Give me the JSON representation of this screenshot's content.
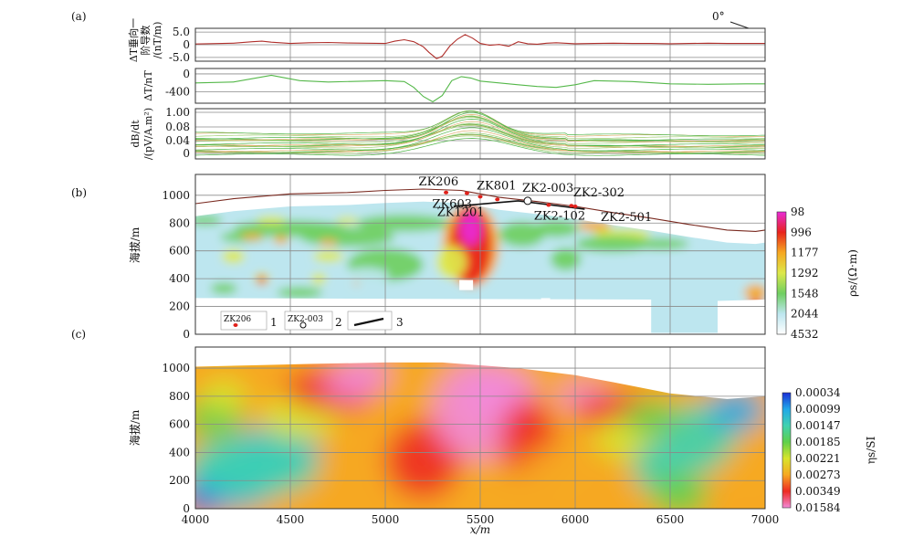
{
  "panel_labels": [
    "(a)",
    "(b)",
    "(c)"
  ],
  "direction_label": "0°",
  "chart_data": [
    {
      "id": "a1",
      "type": "line",
      "ylabel": [
        "ΔT垂向一",
        "阶导数",
        "/(nT/m)"
      ],
      "yticks": [
        "5.0",
        "0",
        "-5.0"
      ],
      "ytick_values": [
        5,
        0,
        -5
      ],
      "ylim": [
        -6.5,
        6.5
      ],
      "xlim": [
        4000,
        7000
      ],
      "color": "#b0302c",
      "x": [
        4000,
        4200,
        4300,
        4350,
        4400,
        4500,
        4600,
        4700,
        4800,
        4900,
        5000,
        5050,
        5100,
        5150,
        5200,
        5230,
        5270,
        5300,
        5340,
        5380,
        5420,
        5460,
        5500,
        5550,
        5600,
        5650,
        5700,
        5750,
        5800,
        5850,
        5900,
        6000,
        6100,
        6200,
        6300,
        6400,
        6500,
        6600,
        6700,
        6800,
        6900,
        7000
      ],
      "values": [
        0.3,
        0.6,
        1.2,
        1.4,
        1.0,
        0.5,
        0.8,
        0.9,
        0.7,
        0.6,
        0.5,
        1.4,
        2.0,
        1.2,
        -0.8,
        -3.0,
        -5.5,
        -4.5,
        -0.5,
        2.2,
        4.0,
        2.6,
        0.5,
        -0.2,
        0.1,
        -0.6,
        1.2,
        0.4,
        0.2,
        0.6,
        0.8,
        0.4,
        0.5,
        0.6,
        0.5,
        0.5,
        0.4,
        0.5,
        0.6,
        0.5,
        0.5,
        0.5
      ]
    },
    {
      "id": "a2",
      "type": "line",
      "ylabel": [
        "ΔT/nT"
      ],
      "yticks": [
        "0",
        "-400"
      ],
      "ytick_values": [
        0,
        -400
      ],
      "ylim": [
        -650,
        120
      ],
      "xlim": [
        4000,
        7000
      ],
      "color": "#55b84a",
      "x": [
        4000,
        4200,
        4400,
        4550,
        4700,
        4900,
        5000,
        5100,
        5150,
        5200,
        5250,
        5300,
        5350,
        5400,
        5450,
        5500,
        5600,
        5700,
        5800,
        5900,
        6000,
        6100,
        6300,
        6500,
        6700,
        6900,
        7000
      ],
      "values": [
        -200,
        -180,
        -30,
        -150,
        -180,
        -160,
        -150,
        -170,
        -300,
        -500,
        -620,
        -480,
        -150,
        -60,
        -90,
        -160,
        -200,
        -240,
        -280,
        -300,
        -240,
        -150,
        -170,
        -220,
        -230,
        -220,
        -220
      ]
    },
    {
      "id": "a3",
      "type": "line",
      "ylabel": [
        "dB/dt",
        "/(pV/A.m²)"
      ],
      "yticks": [
        "1.00",
        "0.08",
        "0.04",
        "0"
      ],
      "ylim": [
        0,
        1
      ],
      "xlim": [
        4000,
        7000
      ],
      "color": "#5fbf52",
      "peak_x": 5450,
      "baselines": [
        0.05,
        0.1,
        0.15,
        0.22,
        0.3,
        0.38,
        0.46
      ],
      "peak": 1.0
    },
    {
      "id": "b",
      "type": "heatmap",
      "ylabel": "海拔/m",
      "yticks": [
        "1000",
        "800",
        "600",
        "400",
        "200",
        "0"
      ],
      "ytick_values": [
        1000,
        800,
        600,
        400,
        200,
        0
      ],
      "ylim": [
        0,
        1150
      ],
      "xlim": [
        4000,
        7000
      ],
      "colorbar_label": "ρs/(Ω·m)",
      "colorbar_ticks": [
        "98",
        "996",
        "1177",
        "1292",
        "1548",
        "2044",
        "4532"
      ],
      "colorbar_colors": [
        "#e82bd8",
        "#e8231c",
        "#f6a821",
        "#dde84a",
        "#6fcf61",
        "#bde6ef",
        "#ffffff"
      ],
      "terrain_x": [
        4000,
        4200,
        4500,
        4800,
        5000,
        5200,
        5400,
        5500,
        5600,
        5800,
        6000,
        6200,
        6400,
        6600,
        6800,
        6950,
        7000
      ],
      "terrain_y": [
        940,
        975,
        1010,
        1020,
        1035,
        1045,
        1035,
        1010,
        985,
        955,
        920,
        875,
        835,
        790,
        750,
        740,
        750
      ],
      "boreholes": [
        {
          "name": "ZK206",
          "x": 5320,
          "y": 1020,
          "type": "drill"
        },
        {
          "name": "ZK603",
          "x": 5430,
          "y": 1015,
          "type": "drill"
        },
        {
          "name": "ZK801",
          "x": 5500,
          "y": 990,
          "type": "drill"
        },
        {
          "name": "ZK1201",
          "x": 5590,
          "y": 970,
          "type": "drill"
        },
        {
          "name": "ZK2-003",
          "x": 5750,
          "y": 960,
          "type": "hole"
        },
        {
          "name": "ZK2-102",
          "x": 5860,
          "y": 930,
          "type": "drill"
        },
        {
          "name": "ZK2-302",
          "x": 5980,
          "y": 925,
          "type": "drill"
        },
        {
          "name": "ZK2-501",
          "x": 6000,
          "y": 920,
          "type": "drill"
        }
      ],
      "legend": [
        {
          "label": "ZK206",
          "number": "1"
        },
        {
          "label": "ZK2-003",
          "number": "2"
        },
        {
          "label": "",
          "number": "3"
        }
      ]
    },
    {
      "id": "c",
      "type": "heatmap",
      "ylabel": "海拔/m",
      "xlabel": "x/m",
      "yticks": [
        "1000",
        "800",
        "600",
        "400",
        "200",
        "0"
      ],
      "ytick_values": [
        1000,
        800,
        600,
        400,
        200,
        0
      ],
      "ylim": [
        0,
        1150
      ],
      "xticks": [
        "4000",
        "4500",
        "5000",
        "5500",
        "6000",
        "6500",
        "7000"
      ],
      "xtick_values": [
        4000,
        4500,
        5000,
        5500,
        6000,
        6500,
        7000
      ],
      "xlim": [
        4000,
        7000
      ],
      "colorbar_label": "ηs/SI",
      "colorbar_ticks": [
        "0.00034",
        "0.00099",
        "0.00147",
        "0.00185",
        "0.00221",
        "0.00273",
        "0.00349",
        "0.01584"
      ],
      "colorbar_colors": [
        "#1a2fd6",
        "#20a8e8",
        "#3fd1b0",
        "#5fd04a",
        "#d8e42c",
        "#f6a821",
        "#ee2a22",
        "#f28ad8"
      ]
    }
  ]
}
